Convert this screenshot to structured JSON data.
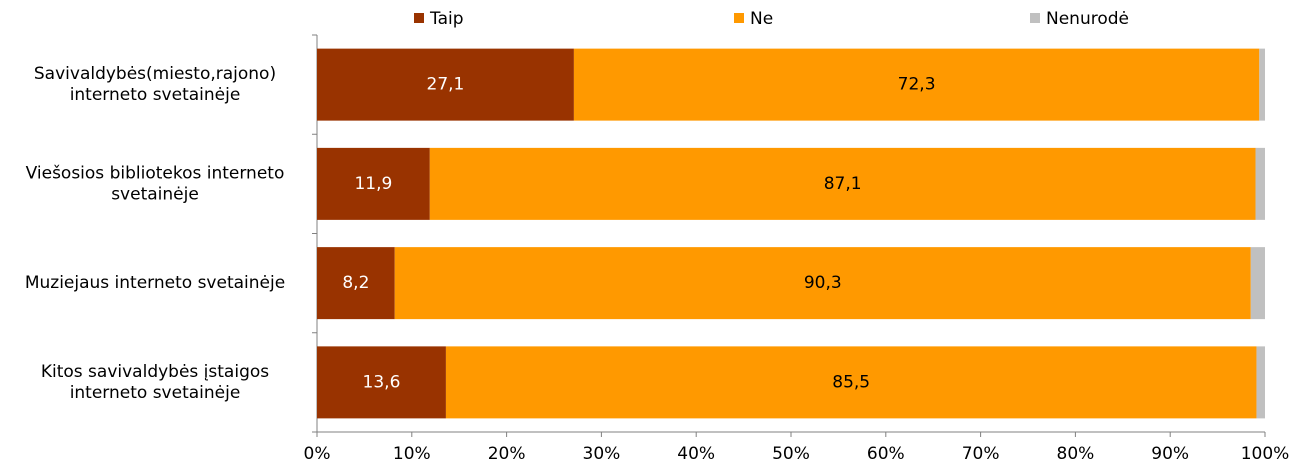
{
  "chart_data": {
    "type": "stacked-barh",
    "categories": [
      "Savivaldybės(miesto,rajono)\ninterneto svetainėje",
      "Viešosios bibliotekos interneto\nsvetainėje",
      "Muziejaus interneto svetainėje",
      "Kitos savivaldybės įstaigos\ninterneto svetainėje"
    ],
    "series": [
      {
        "name": "Taip",
        "color": "#993300",
        "values": [
          27.1,
          11.9,
          8.2,
          13.6
        ],
        "value_labels": [
          "27,1",
          "11,9",
          "8,2",
          "13,6"
        ]
      },
      {
        "name": "Ne",
        "color": "#ff9900",
        "values": [
          72.3,
          87.1,
          90.3,
          85.5
        ],
        "value_labels": [
          "72,3",
          "87,1",
          "90,3",
          "85,5"
        ]
      },
      {
        "name": "Nenurodė",
        "color": "#c0c0c0",
        "values": [
          0.6,
          1.0,
          1.5,
          0.9
        ]
      }
    ],
    "xlim": [
      0,
      100
    ],
    "xticks": [
      {
        "value": 0,
        "label": "0%"
      },
      {
        "value": 10,
        "label": "10%"
      },
      {
        "value": 20,
        "label": "20%"
      },
      {
        "value": 30,
        "label": "30%"
      },
      {
        "value": 40,
        "label": "40%"
      },
      {
        "value": 50,
        "label": "50%"
      },
      {
        "value": 60,
        "label": "60%"
      },
      {
        "value": 70,
        "label": "70%"
      },
      {
        "value": 80,
        "label": "80%"
      },
      {
        "value": 90,
        "label": "90%"
      },
      {
        "value": 100,
        "label": "100%"
      }
    ],
    "legend": "top"
  }
}
